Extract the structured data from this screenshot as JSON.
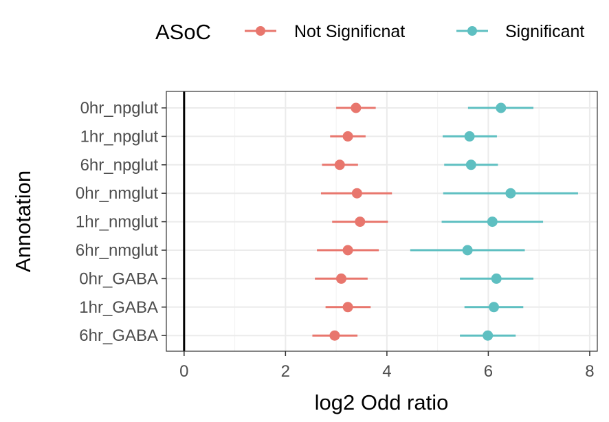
{
  "chart_data": {
    "type": "scatter",
    "title": "",
    "xlabel": "log2 Odd ratio",
    "ylabel": "Annotation",
    "xlim": [
      -0.35,
      8.15
    ],
    "xticks": [
      0,
      2,
      4,
      6,
      8
    ],
    "grid": true,
    "reference_line_x": 0,
    "legend": {
      "title": "ASoC",
      "position": "top",
      "entries": [
        "Not Significnat",
        "Significant"
      ]
    },
    "categories": [
      "0hr_npglut",
      "1hr_npglut",
      "6hr_npglut",
      "0hr_nmglut",
      "1hr_nmglut",
      "6hr_nmglut",
      "0hr_GABA",
      "1hr_GABA",
      "6hr_GABA"
    ],
    "series": [
      {
        "name": "Not Significnat",
        "color": "#E8766D",
        "points": [
          {
            "category": "0hr_npglut",
            "x": 3.39,
            "xmin": 3.0,
            "xmax": 3.78
          },
          {
            "category": "1hr_npglut",
            "x": 3.23,
            "xmin": 2.88,
            "xmax": 3.58
          },
          {
            "category": "6hr_npglut",
            "x": 3.07,
            "xmin": 2.72,
            "xmax": 3.43
          },
          {
            "category": "0hr_nmglut",
            "x": 3.41,
            "xmin": 2.7,
            "xmax": 4.1
          },
          {
            "category": "1hr_nmglut",
            "x": 3.47,
            "xmin": 2.92,
            "xmax": 4.02
          },
          {
            "category": "6hr_nmglut",
            "x": 3.23,
            "xmin": 2.62,
            "xmax": 3.84
          },
          {
            "category": "0hr_GABA",
            "x": 3.1,
            "xmin": 2.58,
            "xmax": 3.62
          },
          {
            "category": "1hr_GABA",
            "x": 3.23,
            "xmin": 2.79,
            "xmax": 3.68
          },
          {
            "category": "6hr_GABA",
            "x": 2.97,
            "xmin": 2.53,
            "xmax": 3.42
          }
        ]
      },
      {
        "name": "Significant",
        "color": "#5EBFC1",
        "points": [
          {
            "category": "0hr_npglut",
            "x": 6.25,
            "xmin": 5.6,
            "xmax": 6.89
          },
          {
            "category": "1hr_npglut",
            "x": 5.63,
            "xmin": 5.1,
            "xmax": 6.17
          },
          {
            "category": "6hr_npglut",
            "x": 5.66,
            "xmin": 5.13,
            "xmax": 6.19
          },
          {
            "category": "0hr_nmglut",
            "x": 6.44,
            "xmin": 5.11,
            "xmax": 7.77
          },
          {
            "category": "1hr_nmglut",
            "x": 6.08,
            "xmin": 5.08,
            "xmax": 7.08
          },
          {
            "category": "6hr_nmglut",
            "x": 5.59,
            "xmin": 4.46,
            "xmax": 6.72
          },
          {
            "category": "0hr_GABA",
            "x": 6.16,
            "xmin": 5.44,
            "xmax": 6.89
          },
          {
            "category": "1hr_GABA",
            "x": 6.11,
            "xmin": 5.53,
            "xmax": 6.69
          },
          {
            "category": "6hr_GABA",
            "x": 5.99,
            "xmin": 5.44,
            "xmax": 6.54
          }
        ]
      }
    ]
  }
}
